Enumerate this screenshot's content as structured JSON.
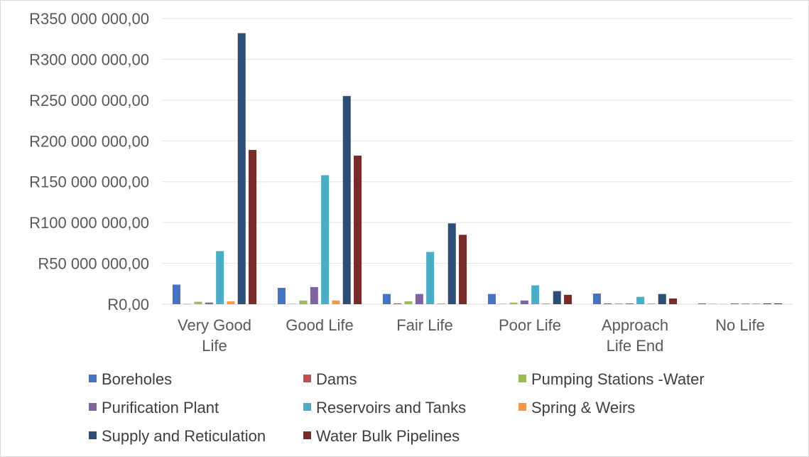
{
  "chart_data": {
    "type": "bar",
    "title": "",
    "xlabel": "",
    "ylabel": "",
    "ylim": [
      0,
      350000000
    ],
    "ytick_step": 50000000,
    "ytick_labels": [
      "R0,00",
      "R50 000 000,00",
      "R100 000 000,00",
      "R150 000 000,00",
      "R200 000 000,00",
      "R250 000 000,00",
      "R300 000 000,00",
      "R350 000 000,00"
    ],
    "grid": true,
    "legend_position": "bottom",
    "categories": [
      [
        "Very Good",
        "Life"
      ],
      [
        "Good Life"
      ],
      [
        "Fair Life"
      ],
      [
        "Poor Life"
      ],
      [
        "Approach",
        "Life End"
      ],
      [
        "No Life"
      ]
    ],
    "series": [
      {
        "name": "Boreholes",
        "color": "#4472c4",
        "values": [
          24000000,
          20000000,
          12500000,
          12500000,
          13000000,
          1000000
        ]
      },
      {
        "name": "Dams",
        "color": "#c0504d",
        "values": [
          300000,
          300000,
          1000000,
          300000,
          1000000,
          300000
        ]
      },
      {
        "name": "Pumping Stations -Water",
        "color": "#9bbb59",
        "values": [
          3000000,
          4500000,
          3500000,
          2000000,
          1000000,
          300000
        ]
      },
      {
        "name": "Purification Plant",
        "color": "#8064a2",
        "values": [
          2000000,
          21000000,
          12500000,
          4500000,
          1000000,
          1000000
        ]
      },
      {
        "name": "Reservoirs and Tanks",
        "color": "#4bacc6",
        "values": [
          65000000,
          158000000,
          64000000,
          23000000,
          9000000,
          1000000
        ]
      },
      {
        "name": "Spring & Weirs",
        "color": "#f79646",
        "values": [
          3500000,
          4500000,
          1000000,
          1000000,
          1000000,
          1000000
        ]
      },
      {
        "name": "Supply and Reticulation",
        "color": "#2c4d75",
        "values": [
          332000000,
          255000000,
          99000000,
          16000000,
          12500000,
          1000000
        ]
      },
      {
        "name": "Water Bulk Pipelines",
        "color": "#772c2a",
        "values": [
          189000000,
          182000000,
          85000000,
          11500000,
          7000000,
          1000000
        ]
      }
    ]
  }
}
